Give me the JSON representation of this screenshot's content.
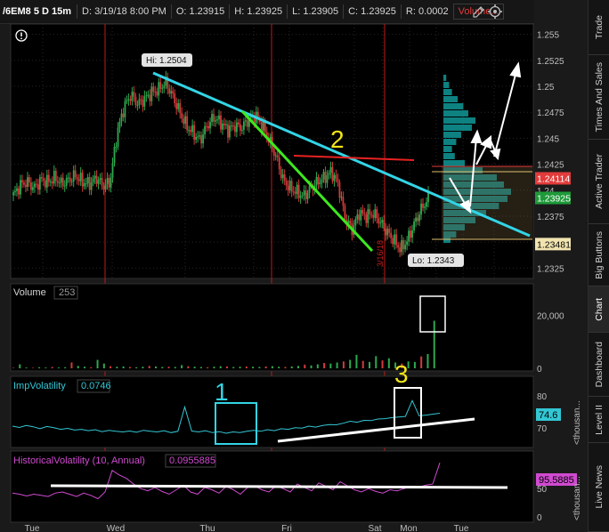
{
  "header": {
    "symbol": "/6EM8 5 D 15m",
    "date": "D: 3/19/18 8:00 PM",
    "open": "O: 1.23915",
    "high": "H: 1.23925",
    "low": "L: 1.23905",
    "close": "C: 1.23925",
    "range": "R: 0.0002",
    "volume_btn": "Volume..."
  },
  "sidebar_tabs": [
    "Trade",
    "Times And Sales",
    "Active Trader",
    "Big Buttons",
    "Chart",
    "Dashboard",
    "Level II",
    "Live News"
  ],
  "sidebar_active": "Chart",
  "colors": {
    "price_up": "#2fa84f",
    "price_down": "#d23a3a",
    "trendline": "#33d4e6",
    "green_line": "#3ee81e",
    "red_line": "#e82222",
    "annotation_yellow": "#f2e51a",
    "annotation_cyan": "#33d4e6",
    "impvol": "#33c7d4",
    "histvol": "#d04ad0",
    "volume_profile": "#0f8f8f",
    "session_line": "#c01818"
  },
  "chart_data": [
    {
      "panel": "price",
      "type": "candlestick",
      "y_axis_ticks": [
        "1.255",
        "1.2525",
        "1.25",
        "1.2475",
        "1.245",
        "1.2425",
        "1.24",
        "1.2375",
        "1.235",
        "1.2325"
      ],
      "ylim": [
        1.2315,
        1.256
      ],
      "x_axis_ticks": [
        "Tue",
        "Wed",
        "Thu",
        "Fri",
        "Sat",
        "Mon",
        "Tue"
      ],
      "series_close": [
        1.2395,
        1.2405,
        1.2408,
        1.2402,
        1.241,
        1.2408,
        1.2412,
        1.2406,
        1.241,
        1.2414,
        1.2408,
        1.2406,
        1.2412,
        1.2404,
        1.2408,
        1.2455,
        1.248,
        1.2492,
        1.2483,
        1.2488,
        1.2494,
        1.2497,
        1.2504,
        1.2491,
        1.2476,
        1.2462,
        1.2455,
        1.2448,
        1.2462,
        1.247,
        1.2465,
        1.2458,
        1.2462,
        1.246,
        1.2468,
        1.2472,
        1.2462,
        1.2448,
        1.2432,
        1.241,
        1.2402,
        1.2398,
        1.2394,
        1.2402,
        1.2408,
        1.2412,
        1.2418,
        1.2405,
        1.2372,
        1.2362,
        1.2378,
        1.2375,
        1.2378,
        1.237,
        1.236,
        1.2352,
        1.2343,
        1.2352,
        1.2368,
        1.2382,
        1.2392
      ],
      "hi_label": "Hi: 1.2504",
      "lo_label": "Lo: 1.2343",
      "vertical_date_label": "3/16/18",
      "price_tags": [
        {
          "value": 1.24114,
          "label": "1.24114",
          "color": "#e23b3b"
        },
        {
          "value": 1.23925,
          "label": "1.23925",
          "color": "#1f9a3a"
        },
        {
          "value": 1.23481,
          "label": "1.23481",
          "color": "#f2e4b0"
        }
      ],
      "annotations": [
        {
          "label": "2",
          "color": "#f2e51a"
        }
      ]
    },
    {
      "panel": "volume",
      "type": "bar",
      "title": "Volume",
      "title_value": "253",
      "y_axis_ticks": [
        "20,000",
        "0"
      ],
      "ylim": [
        0,
        32000
      ],
      "values": [
        200,
        1500,
        300,
        200,
        400,
        300,
        500,
        300,
        400,
        2200,
        900,
        600,
        400,
        3200,
        1800,
        800,
        600,
        700,
        500,
        400,
        600,
        900,
        700,
        500,
        600,
        500,
        1200,
        800,
        600,
        500,
        400,
        600,
        800,
        700,
        500,
        600,
        700,
        600,
        500,
        700,
        800,
        600,
        500,
        700,
        900,
        1400,
        1100,
        1500,
        2000,
        1800,
        2200,
        2600,
        3200,
        5100,
        2800,
        2400,
        4600,
        3000,
        3800,
        2200,
        1800,
        2600,
        2400,
        4500,
        5400,
        18000
      ]
    },
    {
      "panel": "impvol",
      "type": "line",
      "title": "ImpVolatility",
      "title_value": "0.0746",
      "y_axis_ticks": [
        "80",
        "70"
      ],
      "ylim": [
        64,
        86
      ],
      "last_label": "74.6",
      "side_label": "<thousan...",
      "annotations": [
        {
          "label": "1",
          "color": "#33d4e6"
        },
        {
          "label": "3",
          "color": "#f2e51a"
        }
      ],
      "values": [
        70.6,
        70.2,
        70.8,
        70.4,
        69.8,
        70.5,
        70.1,
        69.6,
        69.9,
        69.4,
        69.6,
        69.2,
        69.5,
        68.9,
        69.3,
        69.0,
        68.8,
        69.1,
        68.7,
        69.3,
        69.0,
        68.8,
        69.2,
        68.6,
        69.0,
        76.5,
        69.1,
        68.8,
        69.2,
        68.6,
        68.9,
        68.4,
        68.8,
        68.6,
        69.0,
        69.3,
        69.0,
        69.5,
        69.2,
        69.8,
        69.6,
        70.1,
        70.0,
        70.6,
        70.3,
        70.8,
        71.1,
        71.0,
        71.5,
        72.1,
        71.8,
        72.4,
        72.3,
        72.8,
        72.9,
        73.2,
        73.4,
        73.6,
        78.5,
        73.8,
        74.0,
        74.3,
        74.6
      ]
    },
    {
      "panel": "histvol",
      "type": "line",
      "title": "HistoricalVolatility",
      "title_params": "(10, Annual)",
      "title_value": "0.0955885",
      "y_axis_ticks": [
        "50",
        "0"
      ],
      "ylim": [
        0,
        110
      ],
      "last_label": "95.5885",
      "side_label": "<thousan...",
      "values": [
        42,
        40,
        37,
        40,
        38,
        36,
        42,
        44,
        40,
        36,
        42,
        38,
        32,
        44,
        82,
        74,
        68,
        58,
        50,
        46,
        52,
        45,
        40,
        48,
        56,
        44,
        40,
        52,
        48,
        42,
        54,
        48,
        40,
        52,
        55,
        48,
        44,
        55,
        50,
        44,
        58,
        52,
        46,
        60,
        54,
        48,
        62,
        55,
        48,
        44,
        50,
        45,
        42,
        48,
        46,
        50,
        54,
        52,
        56,
        58,
        95.6
      ]
    }
  ]
}
